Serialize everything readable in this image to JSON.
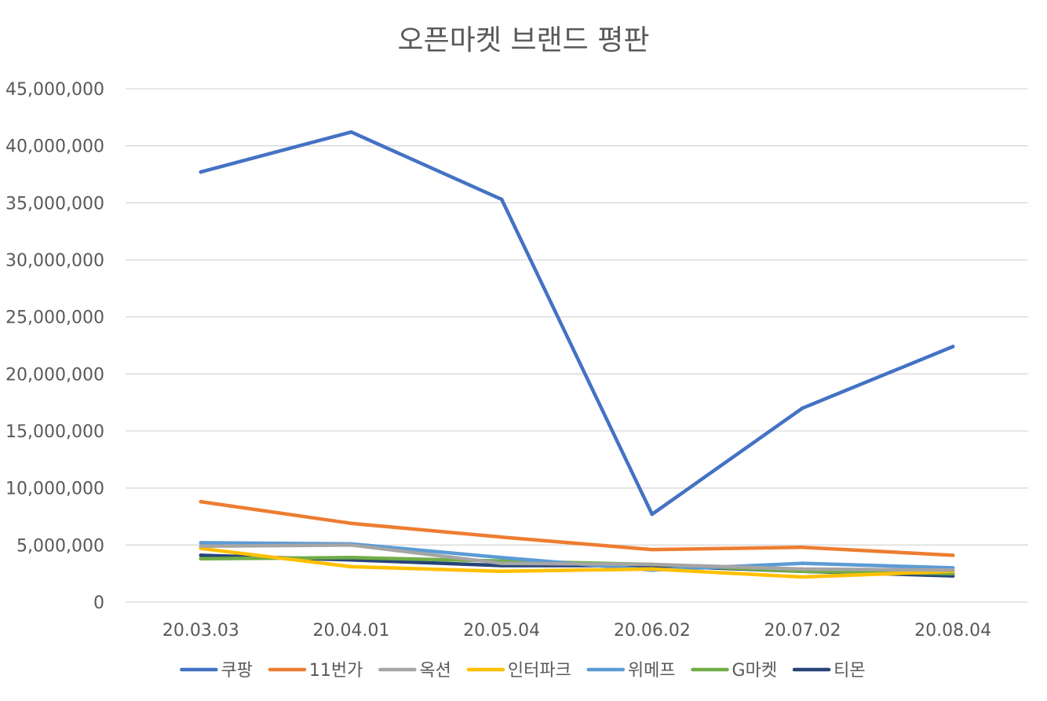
{
  "chart_data": {
    "type": "line",
    "title": "오픈마켓 브랜드 평판",
    "xlabel": "",
    "ylabel": "",
    "categories": [
      "20.03.03",
      "20.04.01",
      "20.05.04",
      "20.06.02",
      "20.07.02",
      "20.08.04"
    ],
    "ylim": [
      0,
      45000000
    ],
    "yticks": [
      0,
      5000000,
      10000000,
      15000000,
      20000000,
      25000000,
      30000000,
      35000000,
      40000000,
      45000000
    ],
    "ytick_labels": [
      "0",
      "5,000,000",
      "10,000,000",
      "15,000,000",
      "20,000,000",
      "25,000,000",
      "30,000,000",
      "35,000,000",
      "40,000,000",
      "45,000,000"
    ],
    "grid": true,
    "legend_position": "bottom",
    "series": [
      {
        "name": "쿠팡",
        "color": "#4472C4",
        "values": [
          37700000,
          41200000,
          35300000,
          7700000,
          17000000,
          22400000
        ]
      },
      {
        "name": "11번가",
        "color": "#ED7D31",
        "values": [
          8800000,
          6900000,
          5700000,
          4600000,
          4800000,
          4100000
        ]
      },
      {
        "name": "옥션",
        "color": "#A5A5A5",
        "values": [
          4900000,
          5000000,
          3400000,
          3300000,
          2900000,
          2800000
        ]
      },
      {
        "name": "인터파크",
        "color": "#FFC000",
        "values": [
          4700000,
          3100000,
          2700000,
          2900000,
          2200000,
          2700000
        ]
      },
      {
        "name": "위메프",
        "color": "#5B9BD5",
        "values": [
          5200000,
          5100000,
          3900000,
          2800000,
          3400000,
          3000000
        ]
      },
      {
        "name": "G마켓",
        "color": "#70AD47",
        "values": [
          3800000,
          3900000,
          3600000,
          3300000,
          2700000,
          2500000
        ]
      },
      {
        "name": "티몬",
        "color": "#264478",
        "values": [
          4100000,
          3700000,
          3200000,
          3200000,
          2700000,
          2300000
        ]
      }
    ]
  }
}
